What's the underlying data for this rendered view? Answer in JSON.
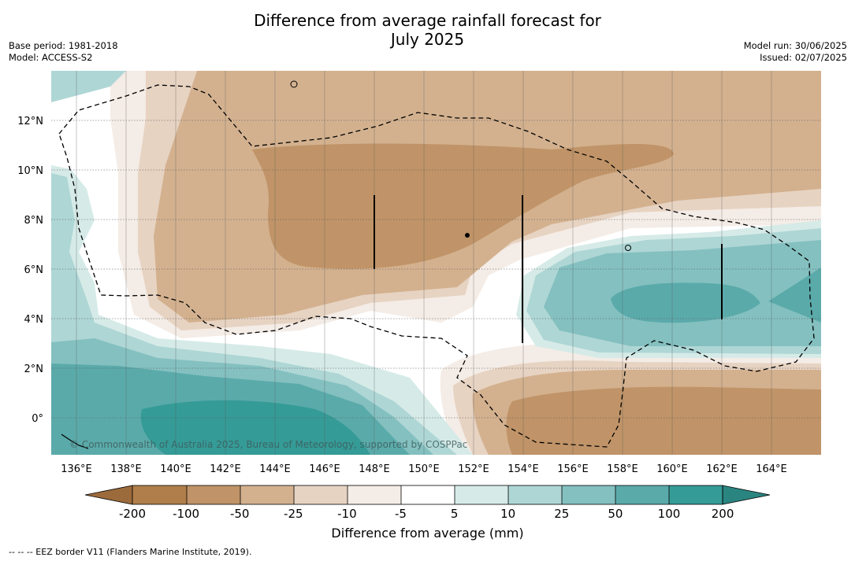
{
  "title_line1": "Difference from average rainfall forecast for",
  "title_line2": "July 2025",
  "base_period": "Base period: 1981-2018",
  "model": "Model: ACCESS-S2",
  "model_run": "Model run: 30/06/2025",
  "issued": "Issued: 02/07/2025",
  "copyright": "© Commonwealth of Australia 2025, Bureau of Meteorology, supported by COSPPac",
  "legend_title": "Difference from average (mm)",
  "footnote": "-- -- -- EEZ border V11 (Flanders Marine Institute, 2019).",
  "lon_ticks": [
    "136°E",
    "138°E",
    "140°E",
    "142°E",
    "144°E",
    "146°E",
    "148°E",
    "150°E",
    "152°E",
    "154°E",
    "156°E",
    "158°E",
    "160°E",
    "162°E",
    "164°E"
  ],
  "lat_ticks": [
    "12°N",
    "10°N",
    "8°N",
    "6°N",
    "4°N",
    "2°N",
    "0°"
  ],
  "colorbar": {
    "labels": [
      "-200",
      "-100",
      "-50",
      "-25",
      "-10",
      "-5",
      "5",
      "10",
      "25",
      "50",
      "100",
      "200"
    ],
    "colors": [
      "#9c6b3c",
      "#b07e4a",
      "#c09468",
      "#d3b18f",
      "#e7d3c2",
      "#f4ece6",
      "#ffffff",
      "#d6ebe8",
      "#aed6d5",
      "#84c0c0",
      "#5baaaa",
      "#359b97",
      "#2a8580"
    ]
  },
  "colors": {
    "dry_strong": "#c09468",
    "dry_mid": "#d3b18f",
    "dry_light": "#e7d3c2",
    "dry_faint": "#f4ece6",
    "wet_faint": "#d6ebe8",
    "wet_light": "#aed6d5",
    "wet_mid": "#84c0c0",
    "wet_strong": "#5baaaa",
    "wet_max": "#359b97"
  }
}
